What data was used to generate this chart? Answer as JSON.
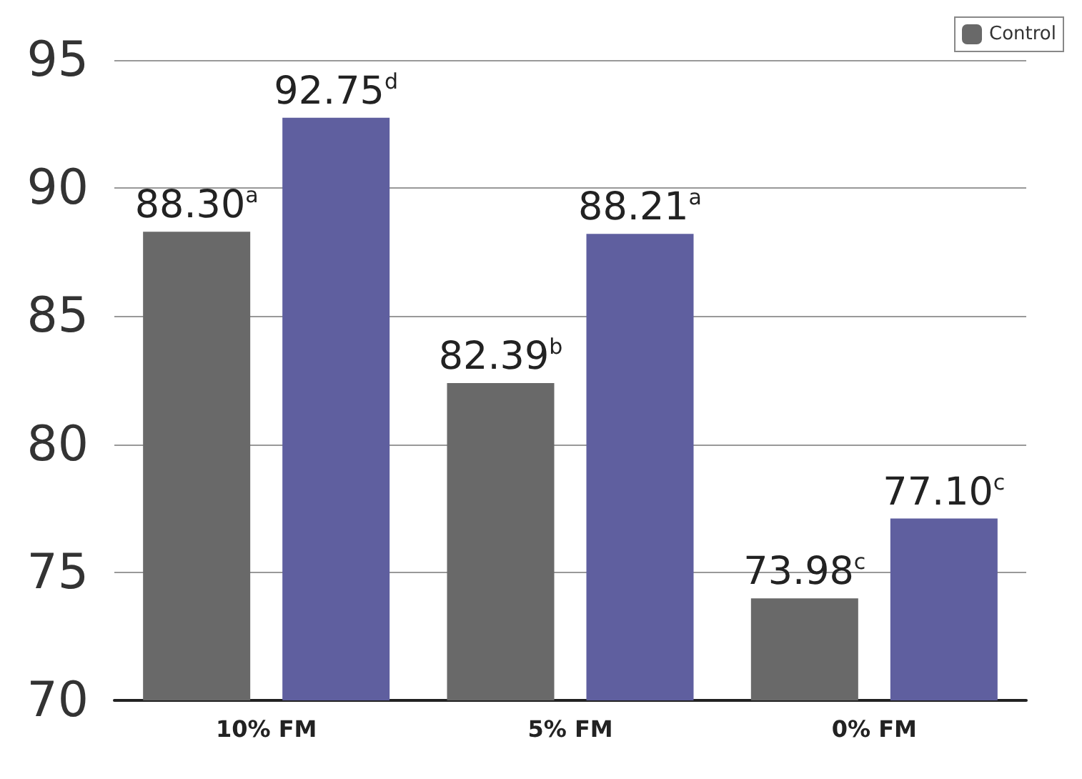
{
  "chart_data": {
    "type": "bar",
    "categories": [
      "10% FM",
      "5% FM",
      "0% FM"
    ],
    "series": [
      {
        "name": "Control",
        "color": "#696969",
        "values": [
          88.3,
          82.39,
          73.98
        ],
        "value_labels": [
          "88.30$^{a}$",
          "82.39$^{b}$",
          "73.98$^{c}$"
        ]
      },
      {
        "color": "#5f5f9f",
        "values": [
          92.75,
          88.21,
          77.1
        ],
        "value_labels": [
          "92.75$^{d}$",
          "88.21$^{a}$",
          "77.10$^{c}$"
        ]
      }
    ],
    "ylim": [
      70,
      95
    ],
    "yticks": [
      70,
      75,
      80,
      85,
      90,
      95
    ],
    "grid": "y",
    "legend": "top right"
  }
}
